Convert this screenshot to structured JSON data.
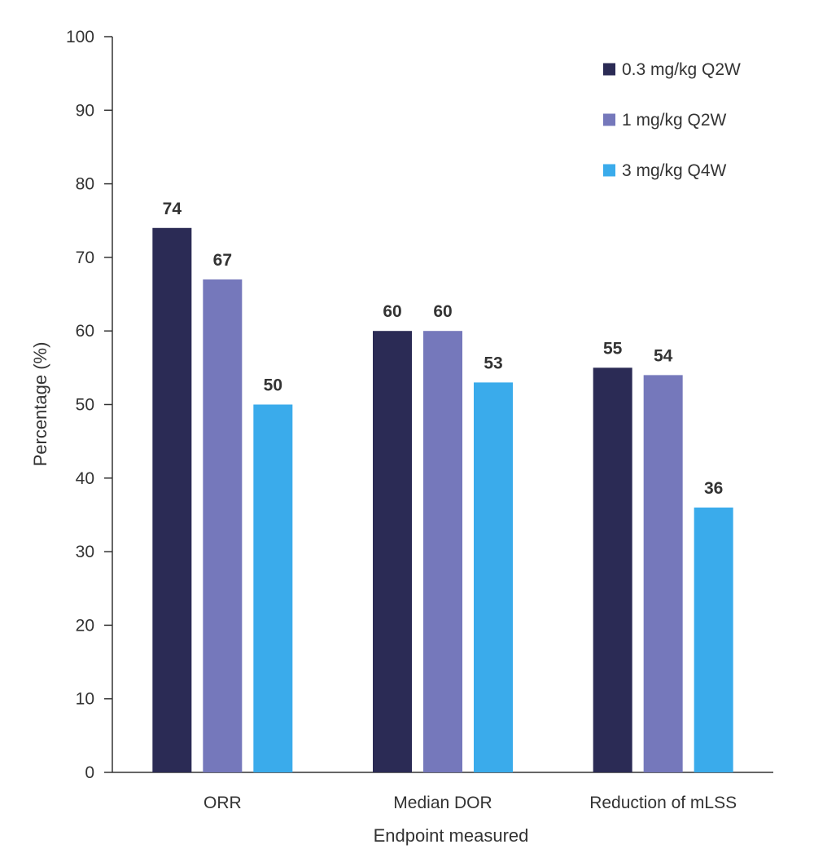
{
  "chart_data": {
    "type": "bar",
    "title": "",
    "xlabel": "Endpoint measured",
    "ylabel": "Percentage (%)",
    "categories": [
      "ORR",
      "Median DOR",
      "Reduction of mLSS"
    ],
    "series": [
      {
        "name": "0.3 mg/kg Q2W",
        "values": [
          74,
          60,
          55
        ],
        "color": "#2b2b55"
      },
      {
        "name": "1 mg/kg Q2W",
        "values": [
          67,
          60,
          54
        ],
        "color": "#7578bb"
      },
      {
        "name": "3 mg/kg Q4W",
        "values": [
          50,
          53,
          36
        ],
        "color": "#3aabeb"
      }
    ],
    "ylim": [
      0,
      100
    ],
    "yticks": [
      0,
      10,
      20,
      30,
      40,
      50,
      60,
      70,
      80,
      90,
      100
    ],
    "grid": false,
    "legend_position": "top-right",
    "data_labels": true
  }
}
